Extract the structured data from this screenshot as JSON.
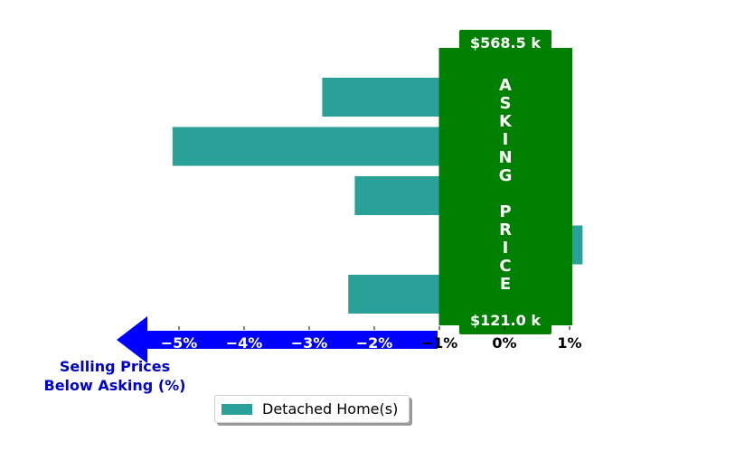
{
  "chart_data": {
    "type": "bar",
    "orientation": "horizontal",
    "series": [
      {
        "name": "Detached Home(s)",
        "color": "#2aa198",
        "values": [
          -2.8,
          -5.1,
          -2.3,
          1.2,
          -2.4
        ]
      }
    ],
    "xlim": [
      -5.4,
      1.3
    ],
    "ticks": [
      {
        "value": -5,
        "label": "−5%"
      },
      {
        "value": -4,
        "label": "−4%"
      },
      {
        "value": -3,
        "label": "−3%"
      },
      {
        "value": -2,
        "label": "−2%"
      },
      {
        "value": -1,
        "label": "−1%"
      },
      {
        "value": 0,
        "label": "0%"
      },
      {
        "value": 1,
        "label": "1%"
      }
    ],
    "asking_price_band": {
      "from": -1,
      "to": 1,
      "color": "#008000",
      "label_letters": [
        "A",
        "S",
        "K",
        "I",
        "N",
        "G",
        "",
        "P",
        "R",
        "I",
        "C",
        "E"
      ],
      "top_value": "$568.5 k",
      "bottom_value": "$121.0 k"
    },
    "arrow": {
      "color": "#0000ff",
      "label_lines": [
        "Selling Prices",
        "Below Asking (%)"
      ],
      "label_color": "#0000cc"
    },
    "legend_position": "bottom-left",
    "grid": false
  }
}
